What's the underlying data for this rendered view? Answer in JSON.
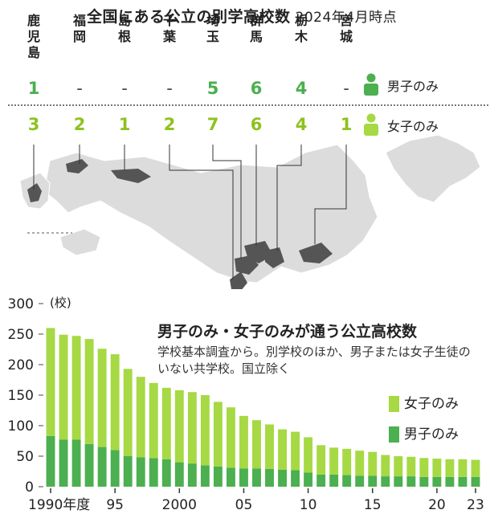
{
  "title": "全国にある公立の別学高校数",
  "title_date": "2024年4月時点",
  "prefectures": [
    {
      "name": "鹿児島",
      "boys": "1",
      "girls": "3"
    },
    {
      "name": "福岡",
      "boys": "-",
      "girls": "2"
    },
    {
      "name": "島根",
      "boys": "-",
      "girls": "1"
    },
    {
      "name": "千葉",
      "boys": "-",
      "girls": "2"
    },
    {
      "name": "埼玉",
      "boys": "5",
      "girls": "7"
    },
    {
      "name": "群馬",
      "boys": "6",
      "girls": "6"
    },
    {
      "name": "栃木",
      "boys": "4",
      "girls": "4"
    },
    {
      "name": "宮城",
      "boys": "-",
      "girls": "1"
    }
  ],
  "legend": {
    "boys": "男子のみ",
    "girls": "女子のみ"
  },
  "colors": {
    "boys": "#4caf50",
    "girls": "#a6d944",
    "map_highlight": "#555555",
    "map_base": "#dcdcdc"
  },
  "chart_data": {
    "type": "bar",
    "stacked": true,
    "title": "男子のみ・女子のみが通う公立高校数",
    "note": "学校基本調査から。別学校のほか、男子または女子生徒のいない共学校。国立除く",
    "ylabel": "(校)",
    "ylim": [
      0,
      300
    ],
    "yticks": [
      "0",
      "50",
      "100",
      "150",
      "200",
      "250",
      "300"
    ],
    "x": [
      1990,
      1991,
      1992,
      1993,
      1994,
      1995,
      1996,
      1997,
      1998,
      1999,
      2000,
      2001,
      2002,
      2003,
      2004,
      2005,
      2006,
      2007,
      2008,
      2009,
      2010,
      2011,
      2012,
      2013,
      2014,
      2015,
      2016,
      2017,
      2018,
      2019,
      2020,
      2021,
      2022,
      2023
    ],
    "xtick_labels": [
      {
        "year": 1990,
        "label": "1990年度"
      },
      {
        "year": 1995,
        "label": "95"
      },
      {
        "year": 2000,
        "label": "2000"
      },
      {
        "year": 2005,
        "label": "05"
      },
      {
        "year": 2010,
        "label": "10"
      },
      {
        "year": 2015,
        "label": "15"
      },
      {
        "year": 2020,
        "label": "20"
      },
      {
        "year": 2023,
        "label": "23"
      }
    ],
    "series": [
      {
        "name": "男子のみ",
        "values": [
          83,
          77,
          77,
          70,
          65,
          60,
          50,
          48,
          47,
          45,
          40,
          38,
          35,
          33,
          31,
          30,
          30,
          29,
          28,
          27,
          23,
          20,
          20,
          19,
          18,
          18,
          17,
          17,
          17,
          16,
          16,
          16,
          16,
          16
        ]
      },
      {
        "name": "女子のみ",
        "values": [
          177,
          172,
          170,
          172,
          161,
          157,
          143,
          132,
          123,
          117,
          118,
          117,
          115,
          106,
          99,
          86,
          79,
          73,
          66,
          63,
          58,
          48,
          44,
          43,
          41,
          39,
          35,
          33,
          32,
          31,
          30,
          29,
          29,
          28
        ]
      }
    ]
  }
}
